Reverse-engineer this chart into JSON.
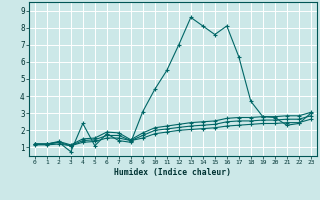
{
  "xlabel": "Humidex (Indice chaleur)",
  "xlim": [
    -0.5,
    23.5
  ],
  "ylim": [
    0.5,
    9.5
  ],
  "xticks": [
    0,
    1,
    2,
    3,
    4,
    5,
    6,
    7,
    8,
    9,
    10,
    11,
    12,
    13,
    14,
    15,
    16,
    17,
    18,
    19,
    20,
    21,
    22,
    23
  ],
  "yticks": [
    1,
    2,
    3,
    4,
    5,
    6,
    7,
    8,
    9
  ],
  "bg_color": "#cce8e8",
  "grid_color": "#ffffff",
  "line_color": "#006666",
  "series": [
    [
      1.2,
      1.2,
      1.3,
      0.75,
      2.4,
      1.1,
      1.8,
      1.4,
      1.3,
      3.1,
      4.4,
      5.5,
      7.0,
      8.6,
      8.1,
      7.6,
      8.1,
      6.3,
      3.7,
      2.8,
      2.75,
      2.3,
      2.4,
      3.0
    ],
    [
      1.2,
      1.2,
      1.35,
      1.15,
      1.5,
      1.55,
      1.9,
      1.85,
      1.45,
      1.85,
      2.15,
      2.25,
      2.35,
      2.45,
      2.5,
      2.55,
      2.7,
      2.75,
      2.75,
      2.8,
      2.8,
      2.85,
      2.85,
      3.05
    ],
    [
      1.15,
      1.15,
      1.2,
      1.1,
      1.3,
      1.35,
      1.55,
      1.55,
      1.4,
      1.55,
      1.8,
      1.9,
      2.0,
      2.05,
      2.1,
      2.15,
      2.25,
      2.3,
      2.35,
      2.4,
      2.4,
      2.45,
      2.45,
      2.65
    ],
    [
      1.2,
      1.2,
      1.3,
      1.1,
      1.4,
      1.45,
      1.7,
      1.7,
      1.4,
      1.7,
      2.0,
      2.08,
      2.17,
      2.25,
      2.3,
      2.35,
      2.5,
      2.55,
      2.55,
      2.6,
      2.6,
      2.65,
      2.65,
      2.85
    ]
  ]
}
